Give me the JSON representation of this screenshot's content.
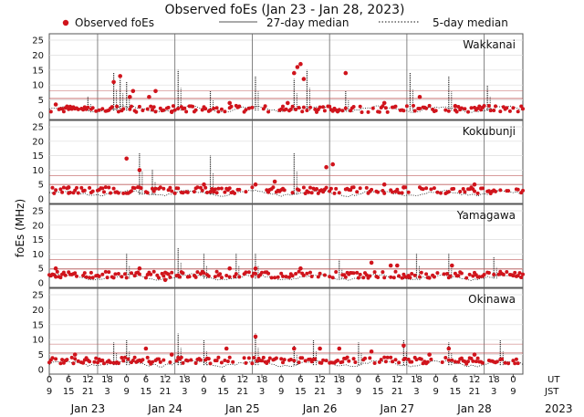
{
  "chart_data": {
    "type": "scatter",
    "title": "Observed foEs (Jan 23 - Jan 28, 2023)",
    "ylabel": "foEs (MHz)",
    "xlabel": "",
    "year": "2023",
    "ylim": [
      0,
      25
    ],
    "yticks": [
      0,
      5,
      10,
      15,
      20,
      25
    ],
    "legend": {
      "placement": "top",
      "items": [
        {
          "label": "Observed foEs",
          "style": "dot",
          "color": "#d0141c"
        },
        {
          "label": "27-day median",
          "style": "solid",
          "color": "#555555"
        },
        {
          "label": "5-day median",
          "style": "dotted",
          "color": "#111111"
        }
      ]
    },
    "x_axis": {
      "units": "hours from Jan 23 00 UT",
      "range": [
        0,
        147
      ],
      "ut_label": "UT",
      "jst_label": "JST",
      "ut_ticks": [
        "0",
        "6",
        "12",
        "18",
        "0",
        "6",
        "12",
        "18",
        "0",
        "6",
        "12",
        "18",
        "0",
        "6",
        "12",
        "18",
        "0",
        "6",
        "12",
        "18",
        "0",
        "6",
        "12",
        "18",
        "0"
      ],
      "jst_ticks": [
        "9",
        "15",
        "21",
        "3",
        "9",
        "15",
        "21",
        "3",
        "9",
        "15",
        "21",
        "3",
        "9",
        "15",
        "21",
        "3",
        "9",
        "15",
        "21",
        "3",
        "9",
        "15",
        "21",
        "3",
        "9"
      ],
      "days": [
        "Jan 23",
        "Jan 24",
        "Jan 25",
        "Jan 26",
        "Jan 27",
        "Jan 28"
      ],
      "day_boundaries_ut_hours": [
        15,
        39,
        63,
        87,
        111,
        135
      ]
    },
    "stations": [
      {
        "name": "Wakkanai",
        "median_27day": 5.5,
        "median_27day_high": 8.0,
        "spikes_5day": [
          [
            12,
            6
          ],
          [
            20,
            14
          ],
          [
            22,
            12
          ],
          [
            24,
            11
          ],
          [
            40,
            15
          ],
          [
            50,
            8
          ],
          [
            64,
            13
          ],
          [
            76,
            12
          ],
          [
            80,
            15
          ],
          [
            92,
            8
          ],
          [
            112,
            14
          ],
          [
            124,
            13
          ],
          [
            136,
            10
          ]
        ],
        "observed_base": 2.0,
        "observed_bursts": [
          [
            2,
            3.5
          ],
          [
            20,
            11
          ],
          [
            22,
            13
          ],
          [
            25,
            6
          ],
          [
            26,
            8
          ],
          [
            31,
            6
          ],
          [
            33,
            8
          ],
          [
            38,
            1
          ],
          [
            56,
            4
          ],
          [
            74,
            4
          ],
          [
            76,
            14
          ],
          [
            77,
            16
          ],
          [
            78,
            17
          ],
          [
            79,
            12
          ],
          [
            92,
            14
          ],
          [
            104,
            4
          ],
          [
            115,
            6
          ],
          [
            126,
            3
          ]
        ]
      },
      {
        "name": "Kokubunji",
        "median_27day": 5.0,
        "median_27day_high": 8.0,
        "spikes_5day": [
          [
            28,
            16
          ],
          [
            32,
            10
          ],
          [
            50,
            15
          ],
          [
            76,
            16
          ]
        ],
        "observed_base": 3.0,
        "observed_bursts": [
          [
            6,
            4
          ],
          [
            24,
            14
          ],
          [
            28,
            10
          ],
          [
            48,
            5
          ],
          [
            64,
            5
          ],
          [
            70,
            6
          ],
          [
            86,
            11
          ],
          [
            88,
            12
          ],
          [
            104,
            5
          ],
          [
            110,
            4
          ],
          [
            132,
            5
          ]
        ]
      },
      {
        "name": "Yamagawa",
        "median_27day": 4.8,
        "median_27day_high": 8.0,
        "spikes_5day": [
          [
            24,
            10
          ],
          [
            40,
            12
          ],
          [
            48,
            10
          ],
          [
            58,
            10
          ],
          [
            64,
            10
          ],
          [
            90,
            8
          ],
          [
            114,
            10
          ],
          [
            124,
            10
          ],
          [
            138,
            9
          ]
        ],
        "observed_base": 2.8,
        "observed_bursts": [
          [
            2,
            5
          ],
          [
            28,
            5
          ],
          [
            36,
            1
          ],
          [
            56,
            5
          ],
          [
            64,
            5
          ],
          [
            78,
            5
          ],
          [
            100,
            7
          ],
          [
            106,
            6
          ],
          [
            108,
            6
          ],
          [
            125,
            6
          ]
        ]
      },
      {
        "name": "Okinawa",
        "median_27day": 5.5,
        "median_27day_high": 8.5,
        "spikes_5day": [
          [
            20,
            9
          ],
          [
            24,
            10
          ],
          [
            40,
            12
          ],
          [
            48,
            10
          ],
          [
            64,
            12
          ],
          [
            76,
            8
          ],
          [
            82,
            10
          ],
          [
            96,
            9
          ],
          [
            110,
            10
          ],
          [
            124,
            9
          ],
          [
            140,
            10
          ]
        ],
        "observed_base": 3.0,
        "observed_bursts": [
          [
            8,
            5
          ],
          [
            30,
            7
          ],
          [
            38,
            5
          ],
          [
            55,
            7
          ],
          [
            64,
            11
          ],
          [
            76,
            7
          ],
          [
            84,
            7
          ],
          [
            90,
            7
          ],
          [
            100,
            6
          ],
          [
            110,
            8
          ],
          [
            118,
            5
          ],
          [
            124,
            7
          ],
          [
            132,
            5
          ]
        ]
      }
    ]
  }
}
